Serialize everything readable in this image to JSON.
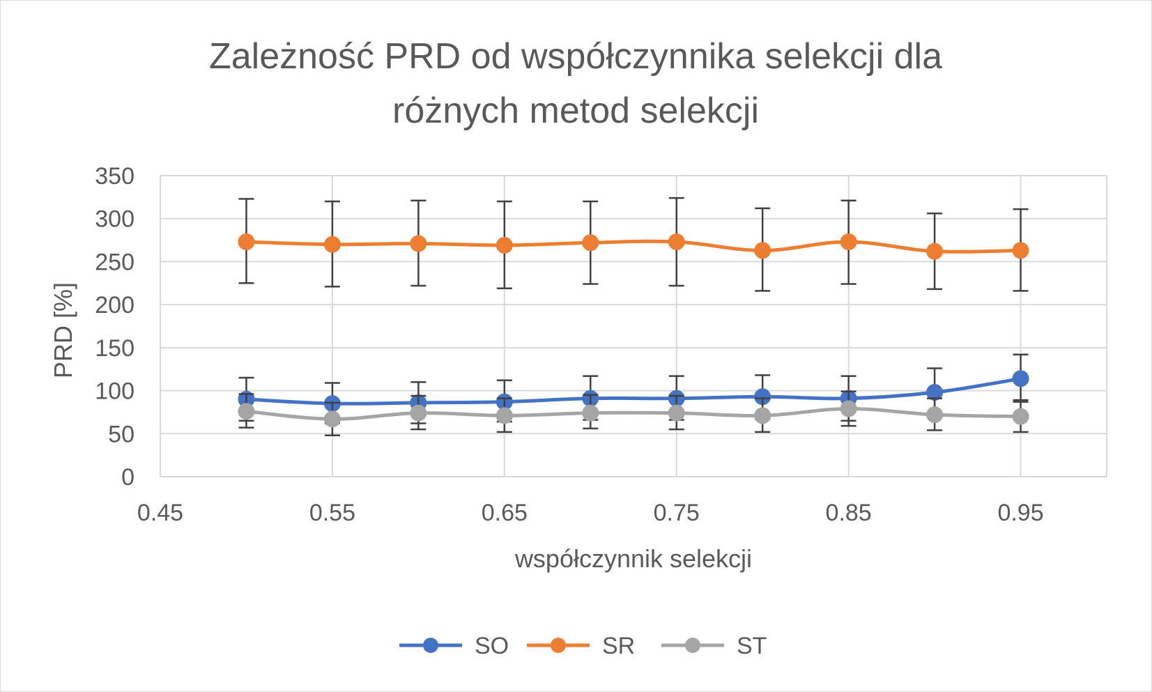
{
  "chart_data": {
    "type": "scatter",
    "title_lines": [
      "Zależność PRD od współczynnika selekcji dla",
      "różnych metod selekcji"
    ],
    "xlabel": "współczynnik selekcji",
    "ylabel": "PRD [%]",
    "xlim": [
      0.45,
      1.0
    ],
    "ylim": [
      0,
      350
    ],
    "x_ticks": [
      0.45,
      0.55,
      0.65,
      0.75,
      0.85,
      0.95
    ],
    "x_tick_labels": [
      "0.45",
      "0.55",
      "0.65",
      "0.75",
      "0.85",
      "0.95"
    ],
    "y_ticks": [
      0,
      50,
      100,
      150,
      200,
      250,
      300,
      350
    ],
    "y_tick_labels": [
      "0",
      "50",
      "100",
      "150",
      "200",
      "250",
      "300",
      "350"
    ],
    "grid": true,
    "legend_position": "bottom",
    "x": [
      0.5,
      0.55,
      0.6,
      0.65,
      0.7,
      0.75,
      0.8,
      0.85,
      0.9,
      0.95
    ],
    "series": [
      {
        "name": "SO",
        "color": "#4472c4",
        "values": [
          90,
          85,
          86,
          87,
          91,
          91,
          93,
          91,
          98,
          114
        ],
        "err_low": [
          65,
          62,
          62,
          64,
          66,
          66,
          67,
          65,
          70,
          87
        ],
        "err_high": [
          115,
          109,
          110,
          112,
          117,
          117,
          118,
          117,
          126,
          142
        ]
      },
      {
        "name": "SR",
        "color": "#ed7d31",
        "values": [
          273,
          270,
          271,
          269,
          272,
          273,
          263,
          273,
          262,
          263
        ],
        "err_low": [
          225,
          221,
          222,
          219,
          224,
          222,
          216,
          224,
          218,
          216
        ],
        "err_high": [
          323,
          320,
          321,
          320,
          320,
          324,
          312,
          321,
          306,
          311
        ]
      },
      {
        "name": "ST",
        "color": "#a5a5a5",
        "values": [
          76,
          67,
          74,
          71,
          74,
          74,
          71,
          79,
          72,
          70
        ],
        "err_low": [
          57,
          48,
          55,
          52,
          56,
          55,
          52,
          59,
          54,
          52
        ],
        "err_high": [
          96,
          86,
          94,
          91,
          95,
          94,
          91,
          99,
          91,
          89
        ]
      }
    ]
  }
}
